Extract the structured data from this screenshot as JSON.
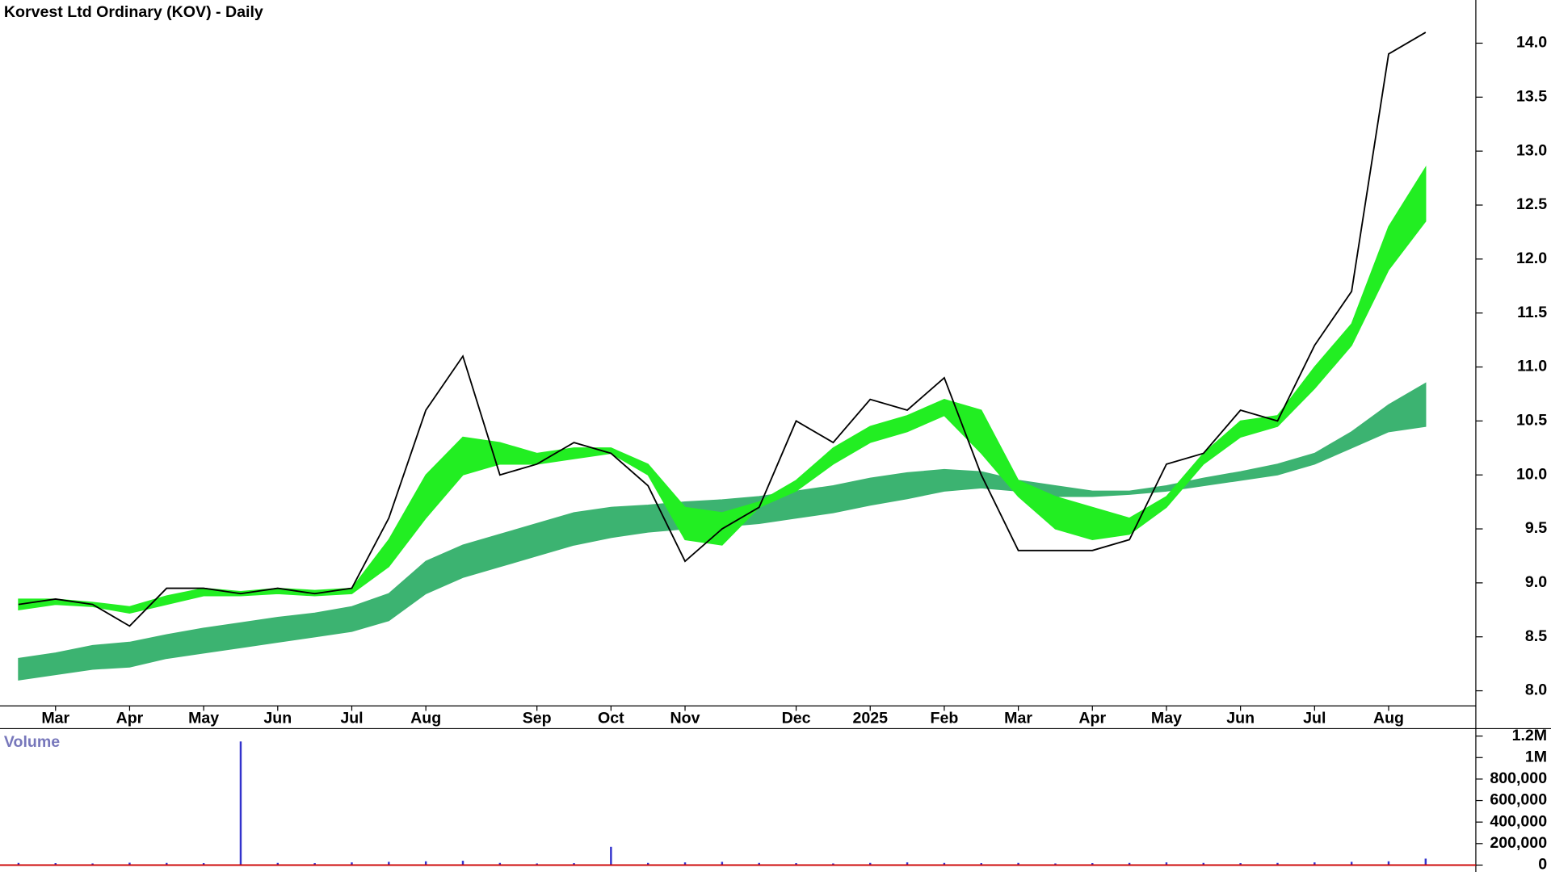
{
  "chart_data": [
    {
      "type": "line",
      "title": "Korvest Ltd Ordinary (KOV) - Daily",
      "categories": [
        null,
        "Mar",
        null,
        "Apr",
        null,
        "May",
        null,
        "Jun",
        null,
        "Jul",
        null,
        "Aug",
        null,
        null,
        "Sep",
        null,
        "Oct",
        null,
        "Nov",
        null,
        null,
        "Dec",
        null,
        "2025",
        null,
        "Feb",
        null,
        "Mar",
        null,
        "Apr",
        null,
        "May",
        null,
        "Jun",
        null,
        "Jul",
        null,
        "Aug",
        null
      ],
      "series": [
        {
          "color": "#000000",
          "values": [
            8.8,
            8.85,
            8.8,
            8.6,
            8.95,
            8.95,
            8.9,
            8.95,
            8.9,
            8.95,
            9.6,
            10.6,
            11.1,
            10.0,
            10.1,
            10.3,
            10.2,
            9.9,
            9.2,
            9.5,
            9.7,
            10.5,
            10.3,
            10.7,
            10.6,
            10.9,
            10.0,
            9.3,
            9.3,
            9.3,
            9.4,
            10.1,
            10.2,
            10.6,
            10.5,
            11.2,
            11.7,
            13.9,
            14.1
          ]
        }
      ],
      "bands": [
        {
          "color": "#3cb371",
          "lower": [
            8.1,
            8.15,
            8.2,
            8.22,
            8.3,
            8.35,
            8.4,
            8.45,
            8.5,
            8.55,
            8.65,
            8.9,
            9.05,
            9.15,
            9.25,
            9.35,
            9.42,
            9.47,
            9.5,
            9.52,
            9.55,
            9.6,
            9.65,
            9.72,
            9.78,
            9.85,
            9.88,
            9.85,
            9.8,
            9.8,
            9.82,
            9.85,
            9.9,
            9.95,
            10.0,
            10.1,
            10.25,
            10.4,
            10.45
          ],
          "upper": [
            8.3,
            8.35,
            8.42,
            8.45,
            8.52,
            8.58,
            8.63,
            8.68,
            8.72,
            8.78,
            8.9,
            9.2,
            9.35,
            9.45,
            9.55,
            9.65,
            9.7,
            9.72,
            9.75,
            9.77,
            9.8,
            9.85,
            9.9,
            9.97,
            10.02,
            10.05,
            10.03,
            9.95,
            9.9,
            9.85,
            9.85,
            9.9,
            9.97,
            10.03,
            10.1,
            10.2,
            10.4,
            10.65,
            10.85
          ]
        },
        {
          "color": "#22ee22",
          "lower": [
            8.75,
            8.8,
            8.78,
            8.72,
            8.8,
            8.88,
            8.88,
            8.9,
            8.88,
            8.9,
            9.15,
            9.6,
            10.0,
            10.1,
            10.1,
            10.15,
            10.2,
            10.0,
            9.4,
            9.35,
            9.7,
            9.85,
            10.1,
            10.3,
            10.4,
            10.55,
            10.2,
            9.8,
            9.5,
            9.4,
            9.45,
            9.7,
            10.1,
            10.35,
            10.45,
            10.8,
            11.2,
            11.9,
            12.35
          ],
          "upper": [
            8.85,
            8.85,
            8.82,
            8.78,
            8.88,
            8.95,
            8.92,
            8.95,
            8.93,
            8.95,
            9.4,
            10.0,
            10.35,
            10.3,
            10.2,
            10.25,
            10.25,
            10.1,
            9.7,
            9.65,
            9.75,
            9.95,
            10.25,
            10.45,
            10.55,
            10.7,
            10.6,
            9.95,
            9.8,
            9.7,
            9.6,
            9.8,
            10.2,
            10.5,
            10.55,
            11.0,
            11.4,
            12.3,
            12.85
          ]
        }
      ],
      "ylim": [
        7.86,
        14.4
      ],
      "yticks": [
        {
          "value": 8,
          "label": "8.0"
        },
        8.5,
        {
          "value": 9,
          "label": "9.0"
        },
        9.5,
        {
          "value": 10,
          "label": "10.0"
        },
        10.5,
        {
          "value": 11,
          "label": "11.0"
        },
        11.5,
        {
          "value": 12,
          "label": "12.0"
        },
        12.5,
        {
          "value": 13,
          "label": "13.0"
        },
        13.5,
        {
          "value": 14,
          "label": "14.0"
        }
      ]
    },
    {
      "type": "bar",
      "title": "Volume",
      "color": "#3333cc",
      "values": [
        20000,
        18000,
        15000,
        22000,
        20000,
        18000,
        1150000,
        20000,
        18000,
        25000,
        30000,
        35000,
        40000,
        20000,
        15000,
        18000,
        170000,
        20000,
        25000,
        30000,
        20000,
        18000,
        15000,
        20000,
        25000,
        20000,
        18000,
        20000,
        15000,
        18000,
        20000,
        25000,
        20000,
        18000,
        20000,
        25000,
        30000,
        35000,
        60000
      ],
      "ylim": [
        0,
        1260000
      ],
      "yticks": [
        0,
        {
          "value": 200000,
          "label": "200,000"
        },
        {
          "value": 400000,
          "label": "400,000"
        },
        {
          "value": 600000,
          "label": "600,000"
        },
        {
          "value": 800000,
          "label": "800,000"
        },
        {
          "value": 1000000,
          "label": "1M"
        },
        {
          "value": 1200000,
          "label": "1.2M"
        }
      ]
    }
  ]
}
